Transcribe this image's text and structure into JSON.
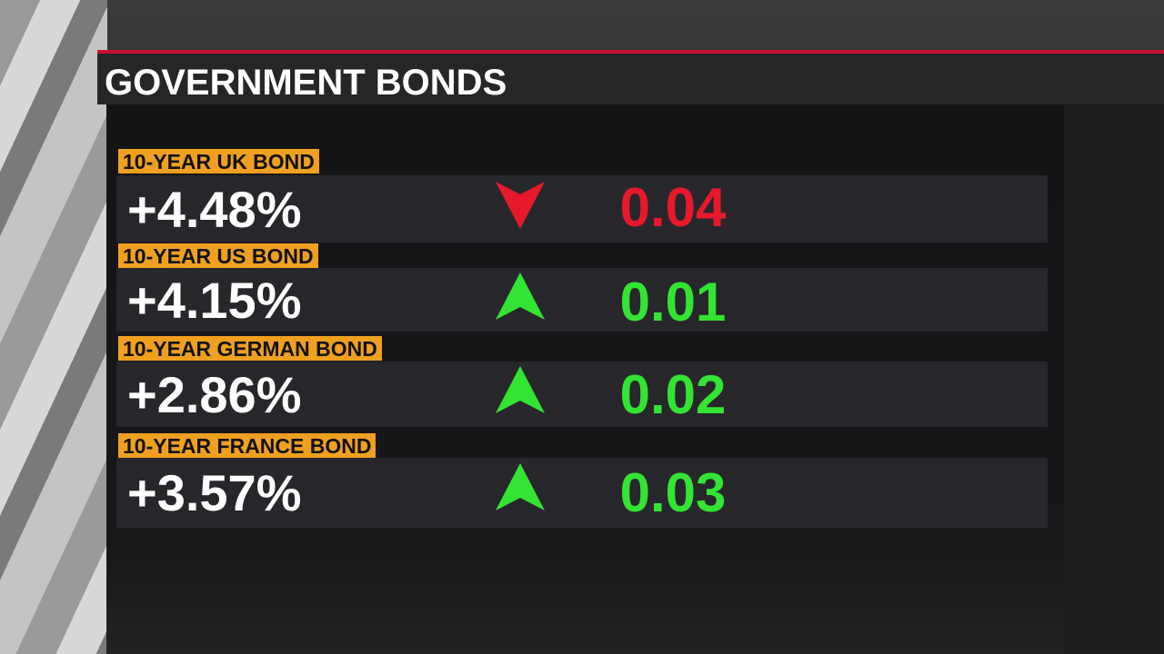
{
  "header": {
    "title": "GOVERNMENT BONDS"
  },
  "rows": [
    {
      "label": "10-YEAR UK BOND",
      "yield": "+4.48%",
      "change": "0.04"
    },
    {
      "label": "10-YEAR US BOND",
      "yield": "+4.15%",
      "change": "0.01"
    },
    {
      "label": "10-YEAR GERMAN BOND",
      "yield": "+2.86%",
      "change": "0.02"
    },
    {
      "label": "10-YEAR FRANCE BOND",
      "yield": "+3.57%",
      "change": "0.03"
    }
  ]
}
